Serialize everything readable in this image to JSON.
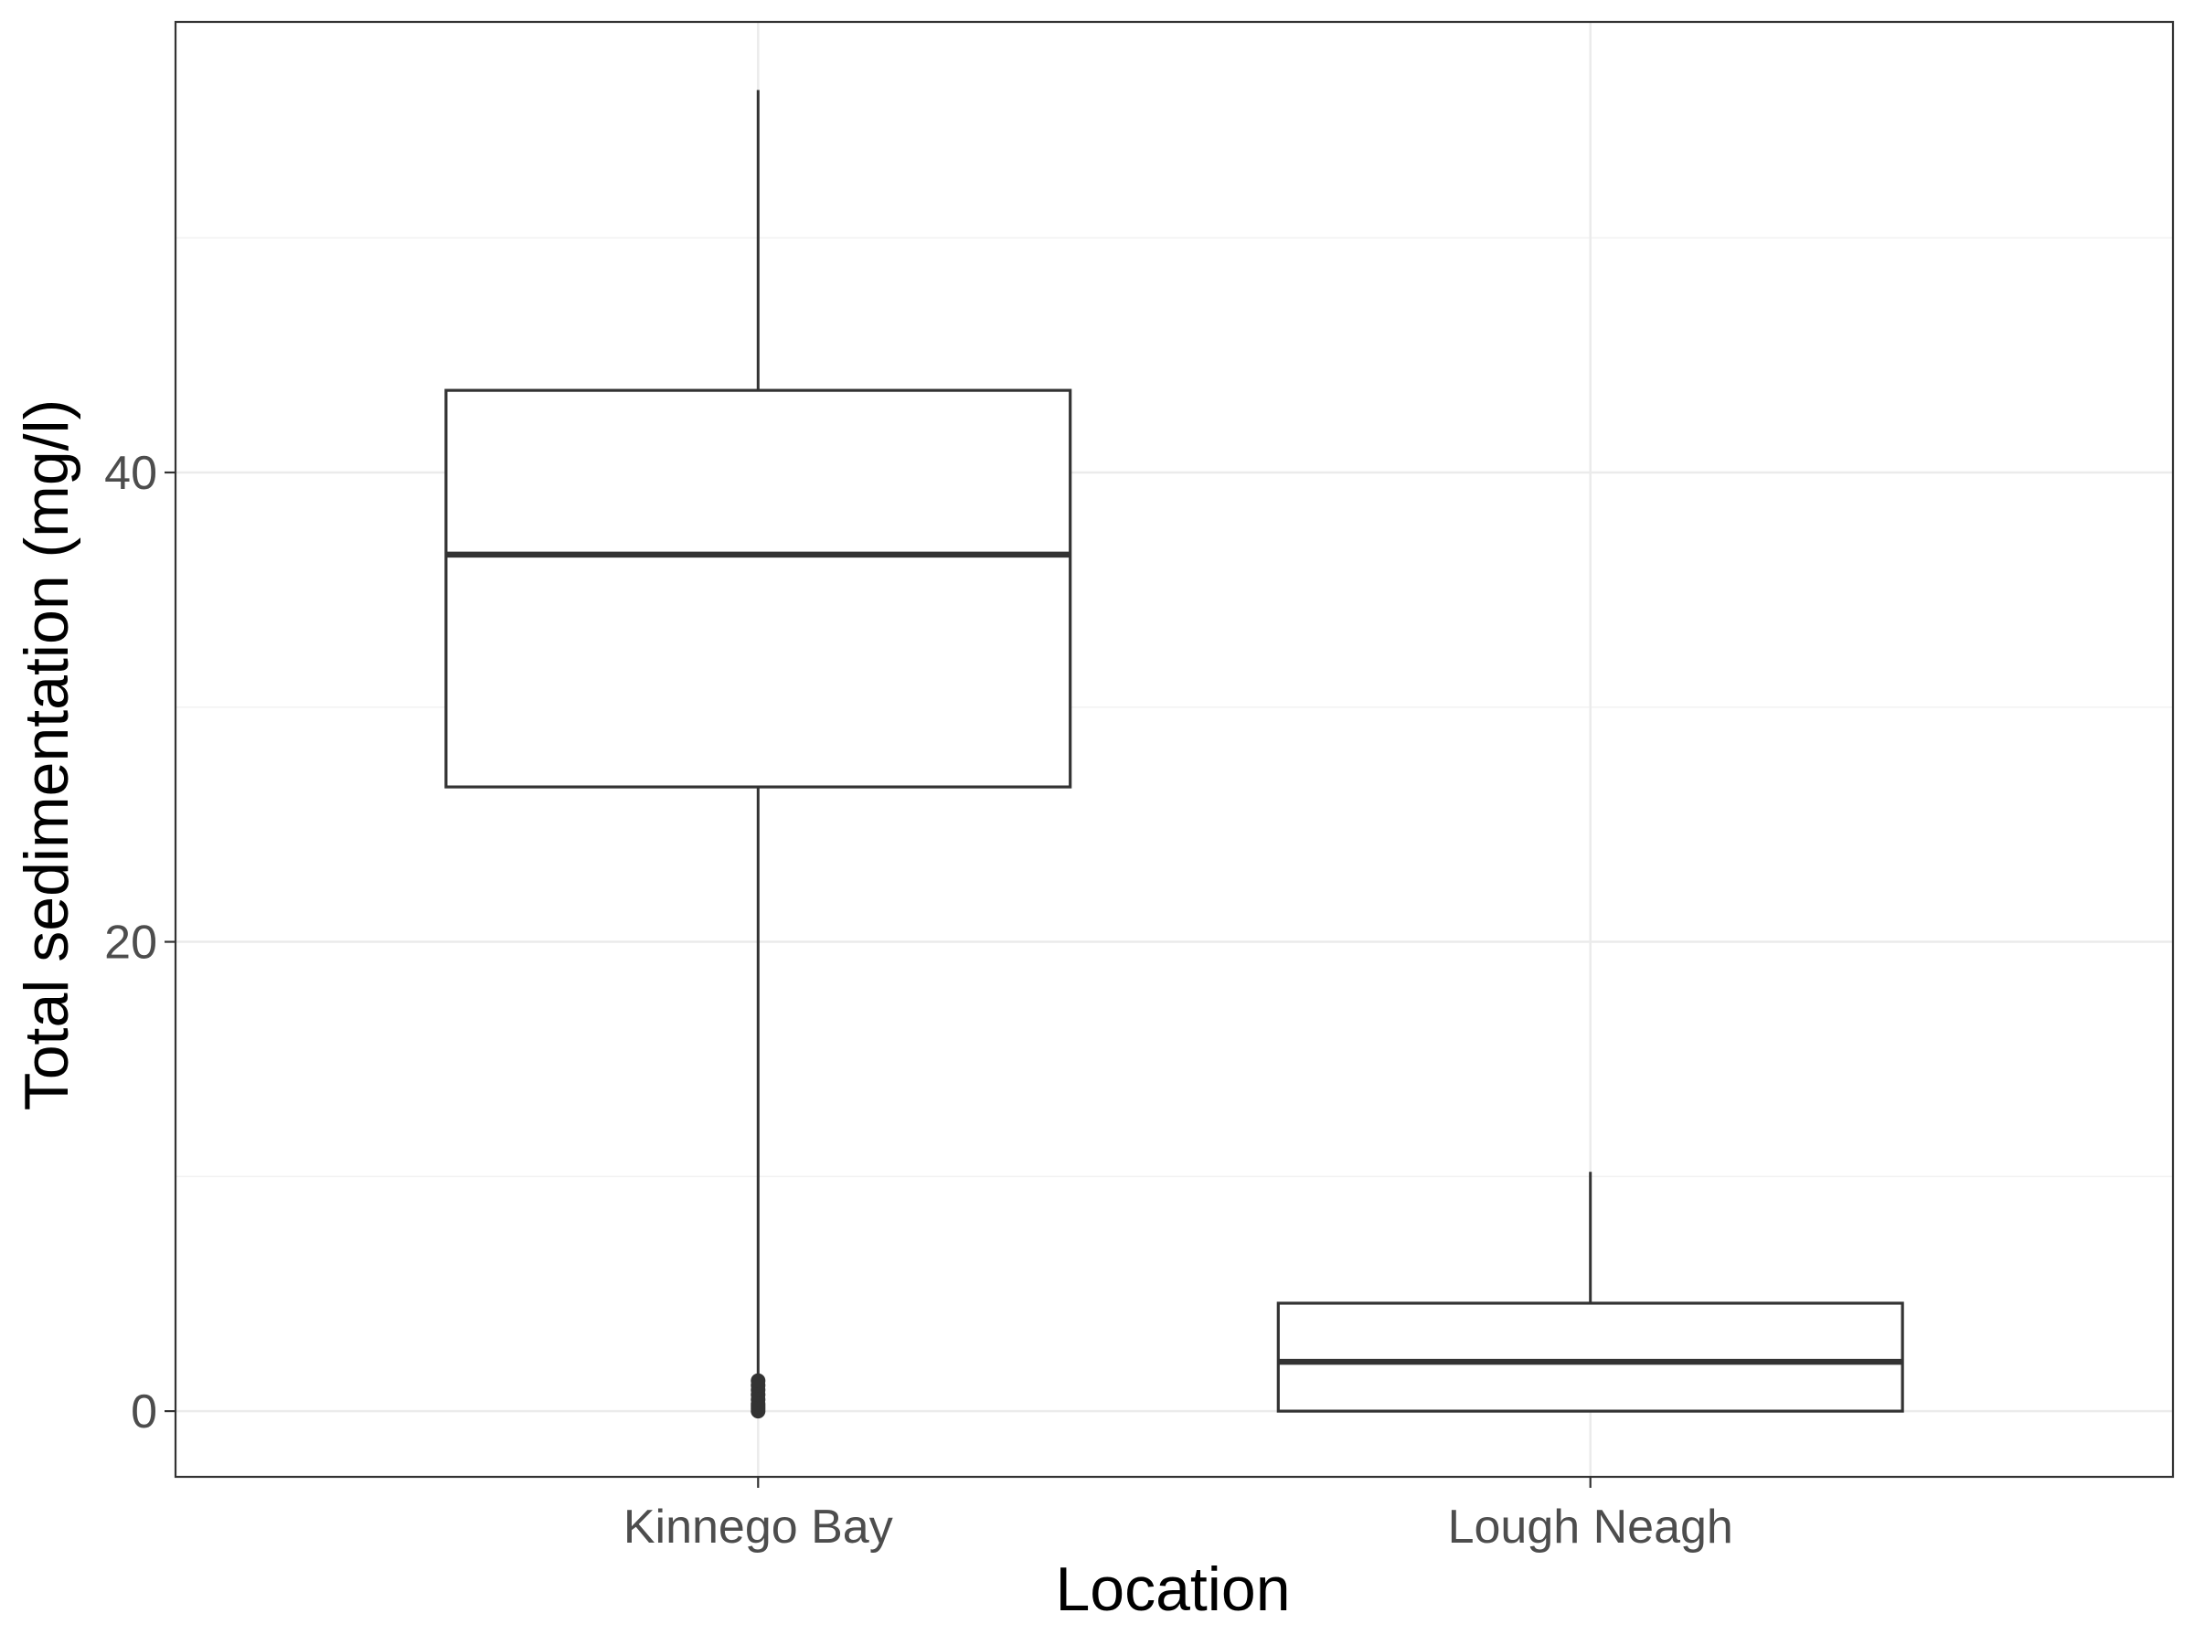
{
  "chart_data": {
    "type": "boxplot",
    "xlabel": "Location",
    "ylabel": "Total sedimentation (mg/l)",
    "ylim": [
      -2.8,
      59.2
    ],
    "yticks": [
      0,
      20,
      40
    ],
    "yticks_labels": [
      "0",
      "20",
      "40"
    ],
    "y_minor_ticks": [
      10,
      30,
      50
    ],
    "categories": [
      "Kinnego Bay",
      "Lough Neagh"
    ],
    "boxes": [
      {
        "category": "Kinnego Bay",
        "whisker_low": 1.4,
        "q1": 26.6,
        "median": 36.5,
        "q3": 43.5,
        "whisker_high": 56.3,
        "outliers": [
          0.0,
          0.1,
          0.2,
          0.3,
          0.5,
          0.7,
          0.9,
          1.1,
          1.3
        ]
      },
      {
        "category": "Lough Neagh",
        "whisker_low": 0.0,
        "q1": 0.0,
        "median": 2.1,
        "q3": 4.6,
        "whisker_high": 10.2,
        "outliers": []
      }
    ],
    "grid": true,
    "theme": "bw",
    "colors": {
      "box_stroke": "#333333",
      "box_fill": "#ffffff",
      "grid_major": "#ebebeb",
      "grid_minor": "#f2f2f2",
      "panel_border": "#333333",
      "tick_text": "#4d4d4d",
      "title_text": "#000000"
    }
  }
}
